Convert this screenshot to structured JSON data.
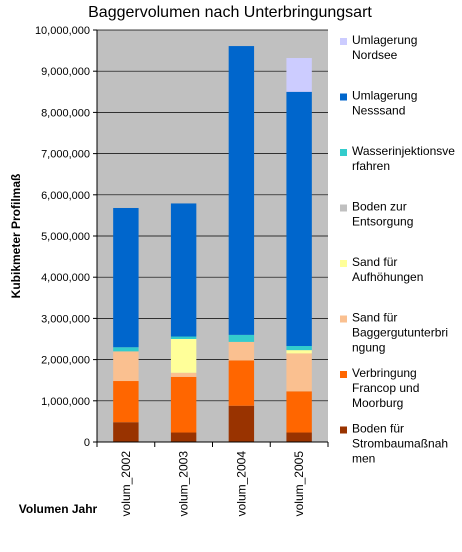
{
  "chart_data": {
    "type": "bar",
    "stacked": true,
    "title": "Baggervolumen nach Unterbringungsart",
    "xlabel": "Volumen Jahr",
    "ylabel": "Kubikmeter Profilmaß",
    "ylim": [
      0,
      10000000
    ],
    "yticks": [
      "0",
      "1,000,000",
      "2,000,000",
      "3,000,000",
      "4,000,000",
      "5,000,000",
      "6,000,000",
      "7,000,000",
      "8,000,000",
      "9,000,000",
      "10,000,000"
    ],
    "categories": [
      "volum_2002",
      "volum_2003",
      "volum_2004",
      "volum_2005"
    ],
    "grid": true,
    "plot_background": "#c0c0c0",
    "legend_position": "right",
    "series": [
      {
        "name": "Boden für Strombaumaßnahmen",
        "label_lines": [
          "Boden für",
          "Strombaumaßnah",
          "men"
        ],
        "color": "#993300",
        "values": [
          480000,
          230000,
          880000,
          230000
        ]
      },
      {
        "name": "Verbringung Francop und Moorburg",
        "label_lines": [
          "Verbringung",
          "Francop und",
          "Moorburg"
        ],
        "color": "#ff6600",
        "values": [
          1000000,
          1350000,
          1100000,
          1000000
        ]
      },
      {
        "name": "Sand für Baggergutunterbringung",
        "label_lines": [
          "Sand für",
          "Baggergutunterbri",
          "ngung"
        ],
        "color": "#fac090",
        "values": [
          720000,
          100000,
          450000,
          920000
        ]
      },
      {
        "name": "Sand für Aufhöhungen",
        "label_lines": [
          "Sand für",
          "Aufhöhungen"
        ],
        "color": "#ffff99",
        "values": [
          0,
          820000,
          0,
          80000
        ]
      },
      {
        "name": "Boden zur Entsorgung",
        "label_lines": [
          "Boden zur",
          "Entsorgung"
        ],
        "color": "#c0c0c0",
        "values": [
          0,
          0,
          0,
          0
        ]
      },
      {
        "name": "Wasserinjektionsverfahren",
        "label_lines": [
          "Wasserinjektionsve",
          "rfahren"
        ],
        "color": "#33cccc",
        "values": [
          100000,
          60000,
          170000,
          100000
        ]
      },
      {
        "name": "Umlagerung Nesssand",
        "label_lines": [
          "Umlagerung",
          "Nesssand"
        ],
        "color": "#0066cc",
        "values": [
          3380000,
          3230000,
          7010000,
          6170000
        ]
      },
      {
        "name": "Umlagerung Nordsee",
        "label_lines": [
          "Umlagerung",
          "Nordsee"
        ],
        "color": "#ccccff",
        "values": [
          0,
          0,
          0,
          820000
        ]
      }
    ]
  }
}
